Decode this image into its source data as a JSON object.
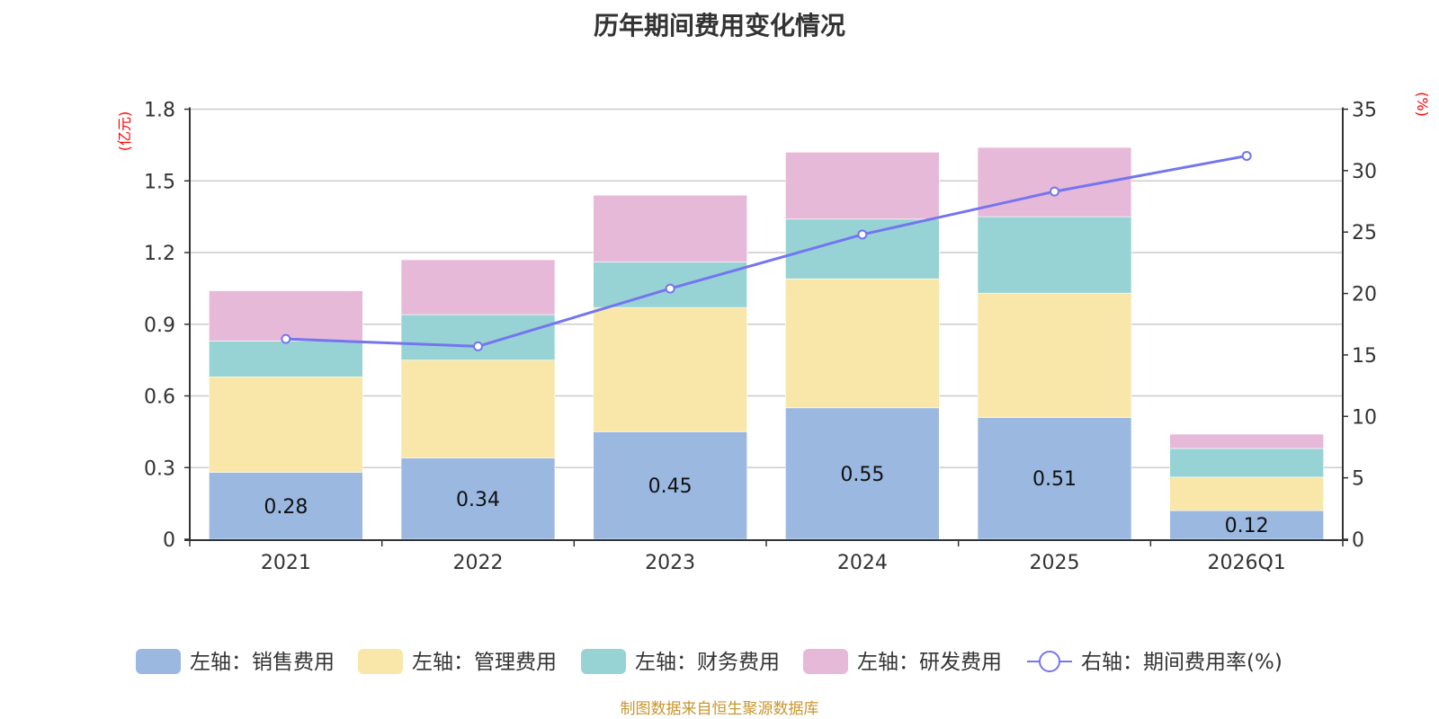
{
  "title": "历年期间费用变化情况",
  "footer": "制图数据来自恒生聚源数据库",
  "colors": {
    "sales": "#9bb8e1",
    "admin": "#f8e7a9",
    "finance": "#97d3d4",
    "rnd": "#e7b9d9",
    "line": "#7475f0",
    "axis": "#333333",
    "grid": "#cccccc",
    "unit": "#ff0000"
  },
  "chart_data": {
    "type": "bar",
    "stacked": true,
    "title": "历年期间费用变化情况",
    "categories": [
      "2021",
      "2022",
      "2023",
      "2024",
      "2025",
      "2026Q1"
    ],
    "series": [
      {
        "key": "sales",
        "name": "左轴：销售费用",
        "axis": "left",
        "type": "bar",
        "values": [
          0.28,
          0.34,
          0.45,
          0.55,
          0.51,
          0.12
        ],
        "show_labels": true
      },
      {
        "key": "admin",
        "name": "左轴：管理费用",
        "axis": "left",
        "type": "bar",
        "values": [
          0.4,
          0.41,
          0.52,
          0.54,
          0.52,
          0.14
        ]
      },
      {
        "key": "finance",
        "name": "左轴：财务费用",
        "axis": "left",
        "type": "bar",
        "values": [
          0.15,
          0.19,
          0.19,
          0.25,
          0.32,
          0.12
        ]
      },
      {
        "key": "rnd",
        "name": "左轴：研发费用",
        "axis": "left",
        "type": "bar",
        "values": [
          0.21,
          0.23,
          0.28,
          0.28,
          0.29,
          0.06
        ]
      },
      {
        "key": "line",
        "name": "右轴：期间费用率(%)",
        "axis": "right",
        "type": "line",
        "values": [
          16.3,
          15.7,
          20.4,
          24.8,
          28.3,
          31.2
        ]
      }
    ],
    "left_axis": {
      "label": "(亿元)",
      "range": [
        0,
        1.8
      ],
      "ticks": [
        "0",
        "0.3",
        "0.6",
        "0.9",
        "1.2",
        "1.5",
        "1.8"
      ]
    },
    "right_axis": {
      "label": "(%)",
      "range": [
        0,
        35
      ],
      "ticks": [
        "0",
        "5",
        "10",
        "15",
        "20",
        "25",
        "30",
        "35"
      ]
    },
    "grid": true,
    "legend_position": "bottom"
  }
}
